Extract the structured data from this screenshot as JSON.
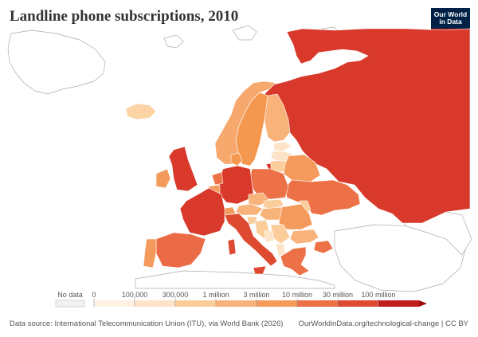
{
  "title": "Landline phone subscriptions, 2010",
  "logo": {
    "line1": "Our World",
    "line2": "in Data"
  },
  "legend": {
    "no_data_label": "No data",
    "ticks": [
      "0",
      "100,000",
      "300,000",
      "1 million",
      "3 million",
      "10 million",
      "30 million",
      "100 million"
    ],
    "colors": {
      "no_data": "#f2f2f2",
      "bins": [
        "#fff1e2",
        "#fde3c7",
        "#fbcd9b",
        "#f8b37a",
        "#f49a5c",
        "#ec7146",
        "#de4a31",
        "#c11d1f"
      ],
      "overflow": "#9e0d0d"
    }
  },
  "footer": {
    "source": "Data source: International Telecommunication Union (ITU), via World Bank (2026)",
    "link": "OurWorldinData.org/technological-change | CC BY"
  }
}
